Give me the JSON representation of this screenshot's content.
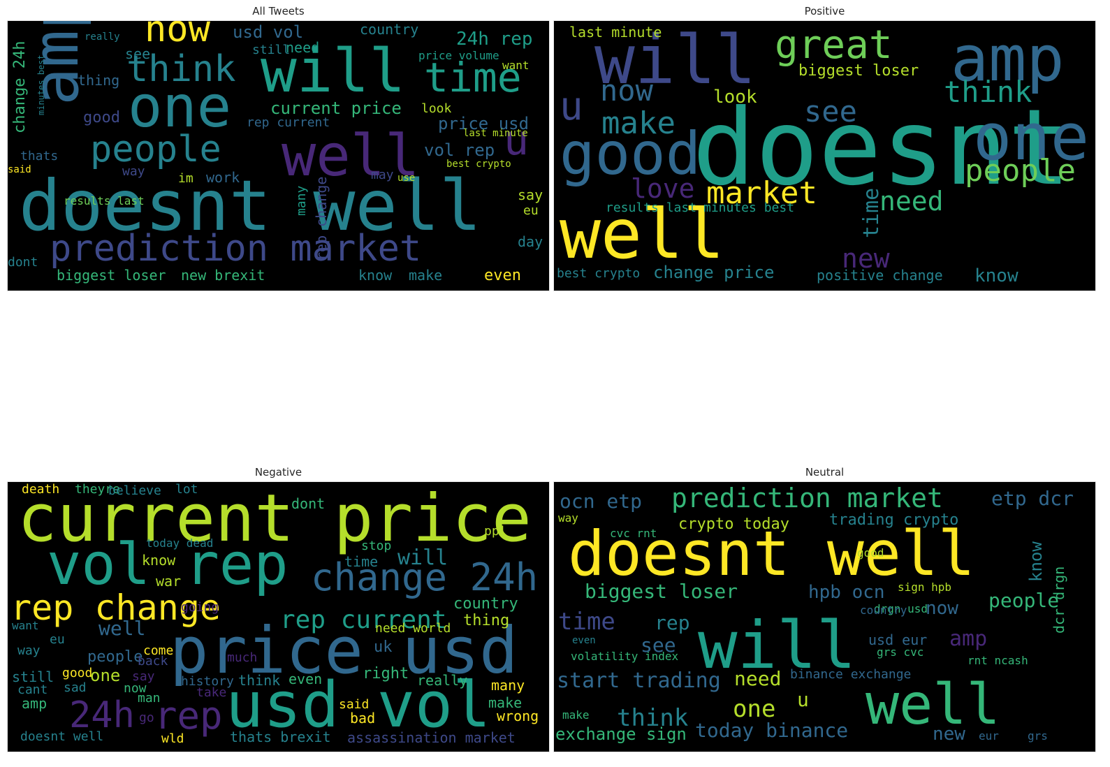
{
  "palette": {
    "yellow": "#fde725",
    "lime": "#b5de2b",
    "green": "#6ece58",
    "mint": "#35b779",
    "teal": "#1f9e89",
    "cyan": "#26828e",
    "steel": "#31688e",
    "indigo": "#3e4989",
    "purple": "#482878",
    "violet": "#440154"
  },
  "panels": [
    {
      "title": "All Tweets",
      "words": [
        {
          "text": "doesnt well",
          "color": "cyan"
        },
        {
          "text": "will",
          "color": "teal"
        },
        {
          "text": "one",
          "color": "cyan"
        },
        {
          "text": "amp",
          "color": "steel"
        },
        {
          "text": "well",
          "color": "purple"
        },
        {
          "text": "prediction market",
          "color": "indigo"
        },
        {
          "text": "people",
          "color": "cyan"
        },
        {
          "text": "time",
          "color": "teal"
        },
        {
          "text": "think",
          "color": "cyan"
        },
        {
          "text": "now",
          "color": "yellow"
        },
        {
          "text": "u",
          "color": "purple"
        },
        {
          "text": "usd vol",
          "color": "steel"
        },
        {
          "text": "24h rep",
          "color": "teal"
        },
        {
          "text": "current price",
          "color": "mint"
        },
        {
          "text": "price usd",
          "color": "steel"
        },
        {
          "text": "vol rep",
          "color": "steel"
        },
        {
          "text": "change 24h",
          "color": "mint"
        },
        {
          "text": "rep change",
          "color": "indigo"
        },
        {
          "text": "biggest loser",
          "color": "mint"
        },
        {
          "text": "new brexit",
          "color": "mint"
        },
        {
          "text": "results last",
          "color": "green"
        },
        {
          "text": "rep current",
          "color": "steel"
        },
        {
          "text": "good",
          "color": "indigo"
        },
        {
          "text": "look",
          "color": "lime"
        },
        {
          "text": "thing",
          "color": "steel"
        },
        {
          "text": "thats",
          "color": "steel"
        },
        {
          "text": "way",
          "color": "indigo"
        },
        {
          "text": "im",
          "color": "lime"
        },
        {
          "text": "work",
          "color": "steel"
        },
        {
          "text": "may",
          "color": "indigo"
        },
        {
          "text": "say",
          "color": "lime"
        },
        {
          "text": "day",
          "color": "cyan"
        },
        {
          "text": "eu",
          "color": "lime"
        },
        {
          "text": "even",
          "color": "yellow"
        },
        {
          "text": "know",
          "color": "cyan"
        },
        {
          "text": "make",
          "color": "cyan"
        },
        {
          "text": "dont",
          "color": "cyan"
        },
        {
          "text": "want",
          "color": "lime"
        },
        {
          "text": "country",
          "color": "cyan"
        },
        {
          "text": "still",
          "color": "cyan"
        },
        {
          "text": "need",
          "color": "teal"
        },
        {
          "text": "see",
          "color": "cyan"
        },
        {
          "text": "really",
          "color": "cyan"
        },
        {
          "text": "price volume",
          "color": "teal"
        },
        {
          "text": "last minute",
          "color": "lime"
        },
        {
          "text": "best crypto",
          "color": "lime"
        },
        {
          "text": "many",
          "color": "teal"
        },
        {
          "text": "said",
          "color": "yellow"
        },
        {
          "text": "use",
          "color": "lime"
        },
        {
          "text": "minutes best",
          "color": "cyan"
        }
      ]
    },
    {
      "title": "Positive",
      "words": [
        {
          "text": "will",
          "color": "indigo"
        },
        {
          "text": "doesnt well",
          "color": "teal"
        },
        {
          "text": "well",
          "color": "yellow"
        },
        {
          "text": "one",
          "color": "steel"
        },
        {
          "text": "amp",
          "color": "steel"
        },
        {
          "text": "great",
          "color": "green"
        },
        {
          "text": "good",
          "color": "steel"
        },
        {
          "text": "people",
          "color": "green"
        },
        {
          "text": "market",
          "color": "yellow"
        },
        {
          "text": "make",
          "color": "cyan"
        },
        {
          "text": "u",
          "color": "indigo"
        },
        {
          "text": "see",
          "color": "steel"
        },
        {
          "text": "think",
          "color": "teal"
        },
        {
          "text": "now",
          "color": "steel"
        },
        {
          "text": "love",
          "color": "purple"
        },
        {
          "text": "need",
          "color": "mint"
        },
        {
          "text": "time",
          "color": "cyan"
        },
        {
          "text": "new",
          "color": "purple"
        },
        {
          "text": "look",
          "color": "lime"
        },
        {
          "text": "biggest loser",
          "color": "lime"
        },
        {
          "text": "last minute",
          "color": "lime"
        },
        {
          "text": "know",
          "color": "cyan"
        },
        {
          "text": "change price",
          "color": "cyan"
        },
        {
          "text": "positive change",
          "color": "cyan"
        },
        {
          "text": "best crypto",
          "color": "cyan"
        },
        {
          "text": "results last",
          "color": "teal"
        },
        {
          "text": "minutes best",
          "color": "teal"
        }
      ]
    },
    {
      "title": "Negative",
      "words": [
        {
          "text": "current price",
          "color": "lime"
        },
        {
          "text": "price usd",
          "color": "steel"
        },
        {
          "text": "usd vol",
          "color": "teal"
        },
        {
          "text": "vol rep",
          "color": "teal"
        },
        {
          "text": "rep change",
          "color": "yellow"
        },
        {
          "text": "change 24h",
          "color": "steel"
        },
        {
          "text": "rep current",
          "color": "teal"
        },
        {
          "text": "24h",
          "color": "purple"
        },
        {
          "text": "rep",
          "color": "purple"
        },
        {
          "text": "will",
          "color": "cyan"
        },
        {
          "text": "well",
          "color": "steel"
        },
        {
          "text": "country",
          "color": "mint"
        },
        {
          "text": "people",
          "color": "steel"
        },
        {
          "text": "one",
          "color": "lime"
        },
        {
          "text": "thing",
          "color": "lime"
        },
        {
          "text": "know",
          "color": "lime"
        },
        {
          "text": "war",
          "color": "lime"
        },
        {
          "text": "time",
          "color": "cyan"
        },
        {
          "text": "ppl",
          "color": "lime"
        },
        {
          "text": "need world",
          "color": "lime"
        },
        {
          "text": "uk",
          "color": "steel"
        },
        {
          "text": "right",
          "color": "mint"
        },
        {
          "text": "really",
          "color": "mint"
        },
        {
          "text": "many",
          "color": "yellow"
        },
        {
          "text": "make",
          "color": "mint"
        },
        {
          "text": "wrong",
          "color": "yellow"
        },
        {
          "text": "thats brexit",
          "color": "cyan"
        },
        {
          "text": "assassination market",
          "color": "indigo"
        },
        {
          "text": "doesnt well",
          "color": "cyan"
        },
        {
          "text": "wld",
          "color": "yellow"
        },
        {
          "text": "bad",
          "color": "yellow"
        },
        {
          "text": "said",
          "color": "yellow"
        },
        {
          "text": "death",
          "color": "yellow"
        },
        {
          "text": "theyre",
          "color": "mint"
        },
        {
          "text": "believe",
          "color": "cyan"
        },
        {
          "text": "lot",
          "color": "cyan"
        },
        {
          "text": "dont",
          "color": "mint"
        },
        {
          "text": "stop",
          "color": "mint"
        },
        {
          "text": "still",
          "color": "cyan"
        },
        {
          "text": "amp",
          "color": "mint"
        },
        {
          "text": "cant",
          "color": "cyan"
        },
        {
          "text": "sad",
          "color": "cyan"
        },
        {
          "text": "good",
          "color": "yellow"
        },
        {
          "text": "way",
          "color": "cyan"
        },
        {
          "text": "eu",
          "color": "cyan"
        },
        {
          "text": "want",
          "color": "cyan"
        },
        {
          "text": "even",
          "color": "mint"
        },
        {
          "text": "think",
          "color": "cyan"
        },
        {
          "text": "history",
          "color": "steel"
        },
        {
          "text": "much",
          "color": "purple"
        },
        {
          "text": "going",
          "color": "purple"
        },
        {
          "text": "today dead",
          "color": "cyan"
        },
        {
          "text": "say",
          "color": "purple"
        },
        {
          "text": "go",
          "color": "purple"
        },
        {
          "text": "man",
          "color": "mint"
        },
        {
          "text": "now",
          "color": "mint"
        },
        {
          "text": "back",
          "color": "indigo"
        },
        {
          "text": "come",
          "color": "yellow"
        },
        {
          "text": "take",
          "color": "purple"
        }
      ]
    },
    {
      "title": "Neutral",
      "words": [
        {
          "text": "doesnt well",
          "color": "yellow"
        },
        {
          "text": "will",
          "color": "teal"
        },
        {
          "text": "well",
          "color": "mint"
        },
        {
          "text": "prediction market",
          "color": "mint"
        },
        {
          "text": "ocn etp",
          "color": "steel"
        },
        {
          "text": "etp dcr",
          "color": "steel"
        },
        {
          "text": "crypto today",
          "color": "lime"
        },
        {
          "text": "trading crypto",
          "color": "cyan"
        },
        {
          "text": "biggest loser",
          "color": "mint"
        },
        {
          "text": "hpb ocn",
          "color": "steel"
        },
        {
          "text": "people",
          "color": "mint"
        },
        {
          "text": "time",
          "color": "indigo"
        },
        {
          "text": "rep",
          "color": "cyan"
        },
        {
          "text": "see",
          "color": "steel"
        },
        {
          "text": "start trading",
          "color": "steel"
        },
        {
          "text": "need",
          "color": "lime"
        },
        {
          "text": "think",
          "color": "cyan"
        },
        {
          "text": "one",
          "color": "lime"
        },
        {
          "text": "u",
          "color": "lime"
        },
        {
          "text": "exchange sign",
          "color": "mint"
        },
        {
          "text": "today binance",
          "color": "steel"
        },
        {
          "text": "binance exchange",
          "color": "steel"
        },
        {
          "text": "new",
          "color": "steel"
        },
        {
          "text": "now",
          "color": "steel"
        },
        {
          "text": "amp",
          "color": "purple"
        },
        {
          "text": "usd eur",
          "color": "steel"
        },
        {
          "text": "drgn usd",
          "color": "mint"
        },
        {
          "text": "sign hpb",
          "color": "lime"
        },
        {
          "text": "know",
          "color": "cyan"
        },
        {
          "text": "dcr drgn",
          "color": "mint"
        },
        {
          "text": "volatility index",
          "color": "mint"
        },
        {
          "text": "grs cvc",
          "color": "mint"
        },
        {
          "text": "rnt ncash",
          "color": "mint"
        },
        {
          "text": "country",
          "color": "steel"
        },
        {
          "text": "cvc rnt",
          "color": "mint"
        },
        {
          "text": "good",
          "color": "lime"
        },
        {
          "text": "make",
          "color": "mint"
        },
        {
          "text": "even",
          "color": "cyan"
        },
        {
          "text": "way",
          "color": "lime"
        },
        {
          "text": "eur",
          "color": "steel"
        },
        {
          "text": "grs",
          "color": "steel"
        }
      ]
    }
  ]
}
